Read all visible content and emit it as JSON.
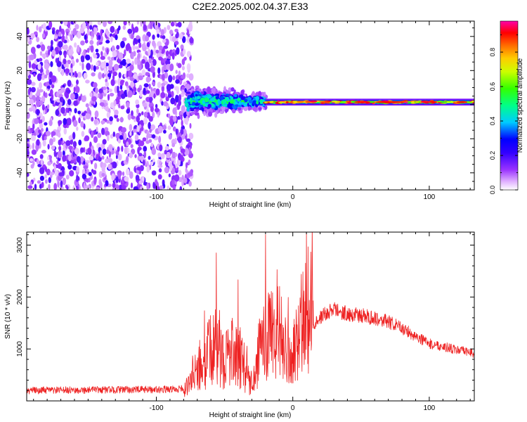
{
  "figure": {
    "title": "C2E2.2025.002.04.37.E33"
  },
  "chart_data": [
    {
      "type": "heatmap",
      "title": "C2E2.2025.002.04.37.E33",
      "xlabel": "Height of straight line (km)",
      "ylabel": "Frequency (Hz)",
      "xlim": [
        -195,
        133
      ],
      "ylim": [
        -50,
        49
      ],
      "xticks": [
        -100,
        0,
        100
      ],
      "xtick_labels": [
        "-100",
        "0",
        "100"
      ],
      "yticks": [
        -40,
        -20,
        0,
        20,
        40
      ],
      "ytick_labels": [
        "-40",
        "-20",
        "0",
        "20",
        "40"
      ],
      "colorbar": {
        "label": "Normalized spectral amplitude",
        "range": [
          0,
          0.98
        ],
        "ticks": [
          0.0,
          0.2,
          0.4,
          0.6,
          0.8
        ],
        "tick_labels": [
          "0.0",
          "0.2",
          "0.4",
          "0.6",
          "0.8"
        ],
        "colors": [
          "#ffffff",
          "#cc66ff",
          "#6600ff",
          "#0000ff",
          "#00ffff",
          "#00ff00",
          "#ffff00",
          "#ff8800",
          "#ff0000",
          "#ff00cc"
        ]
      },
      "regions": [
        {
          "x_range": [
            -195,
            -78
          ],
          "description": "broadband noise",
          "amplitude": 0.1
        },
        {
          "x_range": [
            -78,
            -20
          ],
          "center_freq": 2,
          "freq_spread": 7,
          "amplitude": 0.35
        },
        {
          "x_range": [
            -20,
            133
          ],
          "center_freq": 1.5,
          "freq_spread": 2,
          "amplitude": 0.85
        }
      ]
    },
    {
      "type": "line",
      "xlabel": "Height of straight line (km)",
      "ylabel": "SNR (10 * v/v)",
      "xlim": [
        -195,
        133
      ],
      "ylim": [
        0,
        3250
      ],
      "xticks": [
        -100,
        0,
        100
      ],
      "xtick_labels": [
        "-100",
        "0",
        "100"
      ],
      "yticks": [
        1000,
        2000,
        3000
      ],
      "ytick_labels": [
        "1000",
        "2000",
        "3000"
      ],
      "series": [
        {
          "name": "SNR",
          "color": "#ee2222",
          "x": [
            -195,
            -150,
            -100,
            -80,
            -75,
            -70,
            -65,
            -60,
            -55,
            -50,
            -45,
            -40,
            -35,
            -30,
            -25,
            -20,
            -15,
            -10,
            -5,
            0,
            5,
            10,
            15,
            20,
            25,
            30,
            35,
            40,
            50,
            60,
            70,
            80,
            90,
            100,
            110,
            120,
            133
          ],
          "values": [
            200,
            210,
            220,
            230,
            350,
            600,
            800,
            950,
            1050,
            850,
            900,
            1000,
            600,
            200,
            900,
            1300,
            1200,
            1000,
            900,
            950,
            1200,
            1450,
            1500,
            1600,
            1700,
            1760,
            1720,
            1680,
            1640,
            1600,
            1520,
            1400,
            1250,
            1100,
            1050,
            980,
            920
          ]
        }
      ],
      "peaks": [
        {
          "x": -56,
          "y": 2850
        },
        {
          "x": -20,
          "y": 3200
        },
        {
          "x": 10,
          "y": 3250
        }
      ]
    }
  ]
}
